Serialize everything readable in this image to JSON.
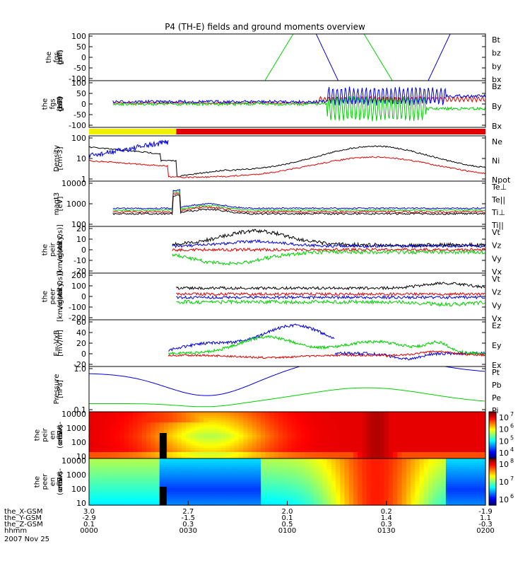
{
  "title": "P4 (TH-E) fields and ground moments overview",
  "colors": {
    "black": "#000000",
    "red": "#e00000",
    "green": "#00d000",
    "blue": "#0000e0",
    "yellow": "#f0f000",
    "darkred": "#b00000"
  },
  "chart_data": [
    {
      "type": "line",
      "id": "fgs",
      "ylabel": [
        "the",
        "fgs",
        "gsm",
        "[nT]"
      ],
      "ticks": [
        "100",
        "50",
        "0",
        "-50",
        "-100"
      ],
      "ylim": [
        -100,
        100
      ],
      "legend": [
        "Bt",
        "bz",
        "by",
        "bx"
      ],
      "legend_colors": [
        "black",
        "red",
        "green",
        "blue"
      ]
    },
    {
      "type": "line",
      "id": "fgs169",
      "ylabel": [
        "the",
        "fgs",
        "gsm",
        "-169",
        "[nT]"
      ],
      "ticks": [
        "100",
        "50",
        "0",
        "-50",
        "-100"
      ],
      "ylim": [
        -100,
        100
      ],
      "legend": [
        "Bz",
        "By",
        "Bx"
      ],
      "legend_colors": [
        "red",
        "green",
        "blue"
      ]
    },
    {
      "type": "bar",
      "id": "mode-bar",
      "segments": [
        {
          "from": 0.0,
          "to": 0.22,
          "color": "yellow"
        },
        {
          "from": 0.22,
          "to": 1.0,
          "color": "red"
        }
      ]
    },
    {
      "type": "line",
      "id": "density",
      "ylabel": [
        "Density",
        "[cm-3]"
      ],
      "ticks": [
        "100",
        "10",
        "1"
      ],
      "legend": [
        "Ne",
        "Ni",
        "Npot"
      ],
      "legend_colors": [
        "red",
        "black",
        "blue"
      ]
    },
    {
      "type": "line",
      "id": "temp",
      "ylabel": [
        "magt3",
        "[eV]"
      ],
      "ticks": [
        "10000",
        "1000",
        "100"
      ],
      "legend": [
        "Te⊥",
        "Te||",
        "Ti⊥",
        "Ti||"
      ],
      "legend_colors": [
        "red",
        "black",
        "blue",
        "green"
      ]
    },
    {
      "type": "line",
      "id": "peir-vel",
      "ylabel": [
        "the",
        "peir",
        "velocity",
        "gsm",
        "[km/s (All Qs)]"
      ],
      "ticks": [
        "20",
        "10",
        "0",
        "-10",
        "-20"
      ],
      "ylim": [
        -20,
        20
      ],
      "legend": [
        "Vt",
        "Vz",
        "Vy",
        "Vx"
      ],
      "legend_colors": [
        "black",
        "red",
        "green",
        "blue"
      ]
    },
    {
      "type": "line",
      "id": "peer-vel",
      "ylabel": [
        "the",
        "peer",
        "velocity",
        "gsm",
        "[km/s (All Qs)]"
      ],
      "ticks": [
        "200",
        "100",
        "0",
        "-100",
        "-200"
      ],
      "ylim": [
        -200,
        200
      ],
      "legend": [
        "Vt",
        "Vz",
        "Vy",
        "Vx"
      ],
      "legend_colors": [
        "black",
        "red",
        "green",
        "blue"
      ]
    },
    {
      "type": "line",
      "id": "efield",
      "ylabel": [
        "E=-VxB",
        "[mV/m]"
      ],
      "ticks": [
        "60",
        "40",
        "20",
        "0",
        "-20"
      ],
      "ylim": [
        -20,
        60
      ],
      "legend": [
        "Ez",
        "Ey",
        "Ex"
      ],
      "legend_colors": [
        "red",
        "green",
        "blue"
      ]
    },
    {
      "type": "line",
      "id": "pressure",
      "ylabel": [
        "Pressure",
        "[nPa]"
      ],
      "ticks": [
        "1.0",
        "0.1"
      ],
      "legend": [
        "Pt",
        "Pb",
        "Pe",
        "Pi"
      ],
      "legend_colors": [
        "black",
        "red",
        "green",
        "blue"
      ]
    },
    {
      "type": "heatmap",
      "id": "peir-spec",
      "ylabel": [
        "the",
        "peir",
        "en",
        "eflux",
        "eV",
        "(cm2-s-",
        "sr-eV)"
      ],
      "ticks": [
        "10000",
        "1000",
        "100",
        "10"
      ],
      "colorbar_ticks": [
        "10",
        "10",
        "10",
        "10"
      ],
      "colorbar_exp": [
        "7",
        "6",
        "5",
        "4"
      ]
    },
    {
      "type": "heatmap",
      "id": "peer-spec",
      "ylabel": [
        "the",
        "peer",
        "en",
        "eflux",
        "eV",
        "(cm2-s-",
        "sr-eV)"
      ],
      "ticks": [
        "10000",
        "1000",
        "100",
        "10"
      ],
      "colorbar_ticks": [
        "10",
        "10",
        "10"
      ],
      "colorbar_exp": [
        "8",
        "7",
        "6"
      ]
    }
  ],
  "xaxis": {
    "rows": [
      {
        "label": "the_X-GSM",
        "values": [
          "3.0",
          "2.7",
          "2.0",
          "0.2",
          "-1.9"
        ]
      },
      {
        "label": "the_Y-GSM",
        "values": [
          "-2.9",
          "-1.5",
          "0.1",
          "1.4",
          "1.1"
        ]
      },
      {
        "label": "the_Z-GSM",
        "values": [
          "0.1",
          "0.3",
          "0.5",
          "0.3",
          "-0.3"
        ]
      },
      {
        "label": "hhmm",
        "values": [
          "0000",
          "0030",
          "0100",
          "0130",
          "0200"
        ]
      }
    ],
    "date": "2007 Nov 25"
  }
}
